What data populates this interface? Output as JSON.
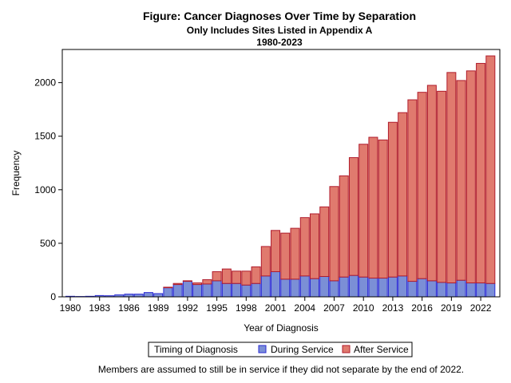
{
  "chart_data": {
    "type": "bar",
    "stacked": true,
    "title": "Figure: Cancer Diagnoses Over Time by Separation",
    "subtitle": "Only Includes Sites Listed in Appendix A",
    "subtitle2": "1980-2023",
    "xlabel": "Year of Diagnosis",
    "ylabel": "Frequency",
    "ylim": [
      0,
      2310
    ],
    "yticks": [
      0,
      500,
      1000,
      1500,
      2000
    ],
    "xticks": [
      1980,
      1983,
      1986,
      1989,
      1992,
      1995,
      1998,
      2001,
      2004,
      2007,
      2010,
      2013,
      2016,
      2019,
      2022
    ],
    "grid": false,
    "legend_title": "Timing of Diagnosis",
    "legend_placement": "bottom",
    "categories": [
      1980,
      1981,
      1982,
      1983,
      1984,
      1985,
      1986,
      1987,
      1988,
      1989,
      1990,
      1991,
      1992,
      1993,
      1994,
      1995,
      1996,
      1997,
      1998,
      1999,
      2000,
      2001,
      2002,
      2003,
      2004,
      2005,
      2006,
      2007,
      2008,
      2009,
      2010,
      2011,
      2012,
      2013,
      2014,
      2015,
      2016,
      2017,
      2018,
      2019,
      2020,
      2021,
      2022,
      2023
    ],
    "series": [
      {
        "name": "During Service",
        "color": "#7b8fd6",
        "edge": "#2a2ad4",
        "values": [
          5,
          3,
          5,
          12,
          10,
          18,
          25,
          25,
          40,
          30,
          85,
          115,
          145,
          115,
          120,
          150,
          125,
          125,
          110,
          125,
          195,
          235,
          165,
          165,
          195,
          170,
          190,
          150,
          185,
          200,
          185,
          175,
          175,
          185,
          195,
          145,
          170,
          150,
          135,
          130,
          155,
          130,
          130,
          125
        ]
      },
      {
        "name": "After Service",
        "color": "#e07a6e",
        "edge": "#b01c2c",
        "values": [
          0,
          0,
          0,
          0,
          0,
          0,
          0,
          0,
          0,
          0,
          5,
          10,
          5,
          15,
          40,
          85,
          135,
          115,
          130,
          155,
          275,
          385,
          430,
          475,
          545,
          605,
          650,
          880,
          945,
          1100,
          1240,
          1315,
          1290,
          1445,
          1525,
          1695,
          1740,
          1825,
          1785,
          1965,
          1865,
          1980,
          2050,
          2125
        ]
      }
    ],
    "footnote": "Members are assumed to still be in service if they did not separate by the end of 2022."
  }
}
